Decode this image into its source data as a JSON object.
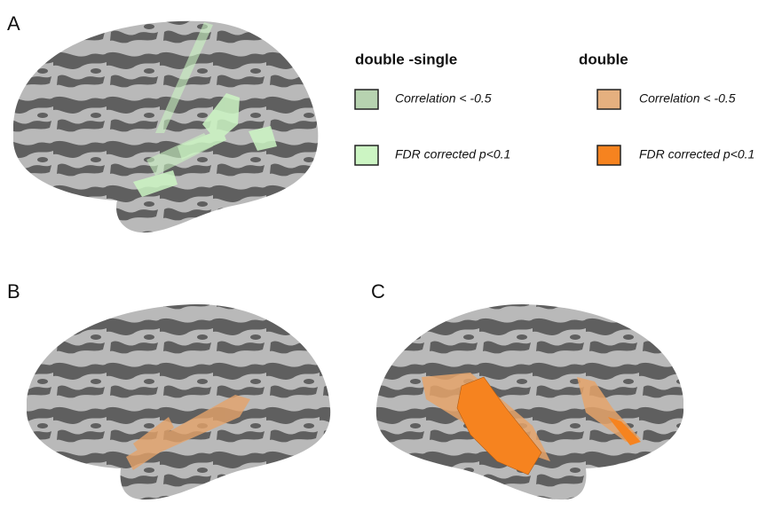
{
  "panels": [
    {
      "label": "A"
    },
    {
      "label": "B"
    },
    {
      "label": "C"
    }
  ],
  "legend": {
    "groups": [
      {
        "title": "double -single",
        "items": [
          {
            "label": "Correlation < -0.5",
            "color": "#b7d3b0"
          },
          {
            "label": "FDR corrected p<0.1",
            "color": "#ccf5c3"
          }
        ]
      },
      {
        "title": "double",
        "items": [
          {
            "label": "Correlation < -0.5",
            "color": "#e5b07f"
          },
          {
            "label": "FDR corrected p<0.1",
            "color": "#f6831f"
          }
        ]
      }
    ]
  }
}
